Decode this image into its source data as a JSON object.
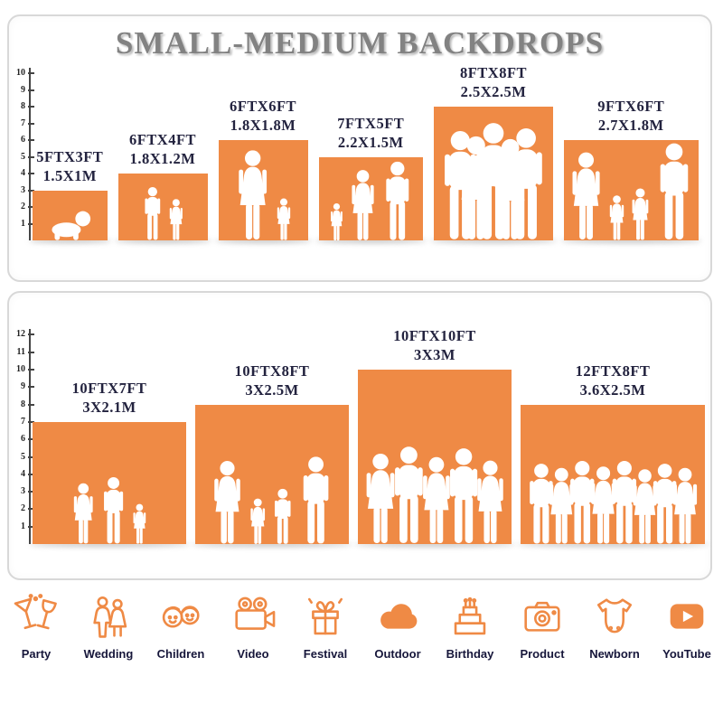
{
  "title": "SMALL-MEDIUM BACKDROPS",
  "accent_color": "#EF8A45",
  "text_color": "#23233F",
  "panels": [
    {
      "name": "small-medium-top",
      "ruler_max_ft": 10,
      "items": [
        {
          "size_ft": "5FTX3FT",
          "size_m": "1.5X1M",
          "w_ft": 5,
          "h_ft": 3,
          "figures": [
            [
              "baby",
              0.62
            ]
          ]
        },
        {
          "size_ft": "6FTX4FT",
          "size_m": "1.8X1.2M",
          "w_ft": 6,
          "h_ft": 4,
          "figures": [
            [
              "boy",
              0.8
            ],
            [
              "girl",
              0.62
            ]
          ]
        },
        {
          "size_ft": "6FTX6FT",
          "size_m": "1.8X1.8M",
          "w_ft": 6,
          "h_ft": 6,
          "figures": [
            [
              "woman",
              0.9
            ],
            [
              "girl",
              0.42
            ]
          ]
        },
        {
          "size_ft": "7FTX5FT",
          "size_m": "2.2X1.5M",
          "w_ft": 7,
          "h_ft": 5,
          "figures": [
            [
              "girl",
              0.45
            ],
            [
              "woman",
              0.85
            ],
            [
              "man",
              0.95
            ]
          ]
        },
        {
          "size_ft": "8FTX8FT",
          "size_m": "2.5X2.5M",
          "w_ft": 8,
          "h_ft": 8,
          "figures": [
            [
              "man",
              0.82
            ],
            [
              "woman",
              0.78
            ],
            [
              "man",
              0.88
            ],
            [
              "woman",
              0.76
            ],
            [
              "man",
              0.84
            ]
          ]
        },
        {
          "size_ft": "9FTX6FT",
          "size_m": "2.7X1.8M",
          "w_ft": 9,
          "h_ft": 6,
          "figures": [
            [
              "woman",
              0.88
            ],
            [
              "girl",
              0.45
            ],
            [
              "girl",
              0.52
            ],
            [
              "man",
              0.97
            ]
          ]
        }
      ]
    },
    {
      "name": "medium-large-bottom",
      "ruler_max_ft": 12,
      "items": [
        {
          "size_ft": "10FTX7FT",
          "size_m": "3X2.1M",
          "w_ft": 10,
          "h_ft": 7,
          "figures": [
            [
              "woman",
              0.5
            ],
            [
              "man",
              0.55
            ],
            [
              "girl",
              0.33
            ]
          ]
        },
        {
          "size_ft": "10FTX8FT",
          "size_m": "3X2.5M",
          "w_ft": 10,
          "h_ft": 8,
          "figures": [
            [
              "woman",
              0.6
            ],
            [
              "girl",
              0.33
            ],
            [
              "boy",
              0.4
            ],
            [
              "man",
              0.63
            ]
          ]
        },
        {
          "size_ft": "10FTX10FT",
          "size_m": "3X3M",
          "w_ft": 10,
          "h_ft": 10,
          "figures": [
            [
              "woman",
              0.52
            ],
            [
              "man",
              0.56
            ],
            [
              "woman",
              0.5
            ],
            [
              "man",
              0.55
            ],
            [
              "woman",
              0.48
            ]
          ]
        },
        {
          "size_ft": "12FTX8FT",
          "size_m": "3.6X2.5M",
          "w_ft": 12,
          "h_ft": 8,
          "figures": [
            [
              "man",
              0.58
            ],
            [
              "woman",
              0.55
            ],
            [
              "man",
              0.6
            ],
            [
              "woman",
              0.56
            ],
            [
              "man",
              0.6
            ],
            [
              "woman",
              0.54
            ],
            [
              "man",
              0.58
            ],
            [
              "woman",
              0.55
            ]
          ]
        }
      ]
    }
  ],
  "categories": [
    {
      "label": "Party",
      "icon": "party-drinks-icon"
    },
    {
      "label": "Wedding",
      "icon": "wedding-couple-icon"
    },
    {
      "label": "Children",
      "icon": "children-faces-icon"
    },
    {
      "label": "Video",
      "icon": "video-camera-icon"
    },
    {
      "label": "Festival",
      "icon": "festival-gift-icon"
    },
    {
      "label": "Outdoor",
      "icon": "cloud-icon"
    },
    {
      "label": "Birthday",
      "icon": "birthday-cake-icon"
    },
    {
      "label": "Product",
      "icon": "photo-camera-icon"
    },
    {
      "label": "Newborn",
      "icon": "baby-onesie-icon"
    },
    {
      "label": "YouTube",
      "icon": "youtube-play-icon"
    }
  ],
  "chart_data": [
    {
      "type": "bar",
      "title": "SMALL-MEDIUM BACKDROPS",
      "categories": [
        "5FTX3FT",
        "6FTX4FT",
        "6FTX6FT",
        "7FTX5FT",
        "8FTX8FT",
        "9FTX6FT"
      ],
      "series": [
        {
          "name": "width_ft",
          "values": [
            5,
            6,
            6,
            7,
            8,
            9
          ]
        },
        {
          "name": "height_ft",
          "values": [
            3,
            4,
            6,
            5,
            8,
            6
          ]
        }
      ],
      "metric_labels": [
        "1.5X1M",
        "1.8X1.2M",
        "1.8X1.8M",
        "2.2X1.5M",
        "2.5X2.5M",
        "2.7X1.8M"
      ],
      "xlabel": "",
      "ylabel": "feet",
      "ylim": [
        0,
        10
      ],
      "grid": false,
      "legend": "none"
    },
    {
      "type": "bar",
      "title": "",
      "categories": [
        "10FTX7FT",
        "10FTX8FT",
        "10FTX10FT",
        "12FTX8FT"
      ],
      "series": [
        {
          "name": "width_ft",
          "values": [
            10,
            10,
            10,
            12
          ]
        },
        {
          "name": "height_ft",
          "values": [
            7,
            8,
            10,
            8
          ]
        }
      ],
      "metric_labels": [
        "3X2.1M",
        "3X2.5M",
        "3X3M",
        "3.6X2.5M"
      ],
      "xlabel": "",
      "ylabel": "feet",
      "ylim": [
        0,
        12
      ],
      "grid": false,
      "legend": "none"
    }
  ]
}
